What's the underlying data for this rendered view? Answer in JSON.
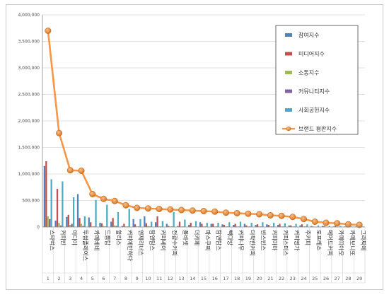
{
  "chart_data": {
    "type": "bar",
    "categories": [
      "스타벅스",
      "커피빈",
      "이디야",
      "투썸플레이스",
      "카페베네",
      "드롭탑",
      "할리스",
      "커피에반하다",
      "엔제리너스",
      "탐앤탐스",
      "커피베이",
      "전광수커피",
      "폴바셋",
      "더카페",
      "파스쿠찌",
      "탐앤탐스",
      "빽다방",
      "커피나무",
      "더착한커피",
      "빈스빈스",
      "커피마마",
      "커피스미스",
      "커피명가",
      "주커피",
      "토프레소",
      "메머드커피",
      "카페띠아모",
      "카페보니또",
      "그라찌에"
    ],
    "ranks": [
      "1",
      "2",
      "3",
      "4",
      "5",
      "6",
      "7",
      "8",
      "9",
      "10",
      "11",
      "12",
      "13",
      "14",
      "15",
      "16",
      "17",
      "18",
      "19",
      "20",
      "21",
      "22",
      "23",
      "24",
      "25",
      "26",
      "27",
      "28",
      "29"
    ],
    "ylim": [
      0,
      4000000
    ],
    "yticks": [
      0,
      500000,
      1000000,
      1500000,
      2000000,
      2500000,
      3000000,
      3500000,
      4000000
    ],
    "ytick_labels": [
      "0",
      "500,000",
      "1,000,000",
      "1,500,000",
      "2,000,000",
      "2,500,000",
      "3,000,000",
      "3,500,000",
      "4,000,000"
    ],
    "grid": true,
    "legend_position": "top-right",
    "series": [
      {
        "name": "참여지수",
        "color": "#4f81bd",
        "kind": "bar",
        "values": [
          1150000,
          120000,
          190000,
          620000,
          180000,
          80000,
          100000,
          20000,
          150000,
          200000,
          90000,
          60000,
          20000,
          40000,
          90000,
          60000,
          50000,
          40000,
          60000,
          40000,
          50000,
          40000,
          30000,
          30000,
          20000,
          20000,
          10000,
          10000,
          10000
        ]
      },
      {
        "name": "미디어지수",
        "color": "#c0504d",
        "kind": "bar",
        "values": [
          1240000,
          720000,
          230000,
          170000,
          90000,
          70000,
          170000,
          60000,
          50000,
          70000,
          200000,
          20000,
          100000,
          80000,
          60000,
          60000,
          40000,
          60000,
          30000,
          50000,
          40000,
          60000,
          30000,
          50000,
          10000,
          20000,
          20000,
          10000,
          10000
        ]
      },
      {
        "name": "소통지수",
        "color": "#9bbb59",
        "kind": "bar",
        "values": [
          200000,
          80000,
          40000,
          60000,
          10000,
          20000,
          30000,
          10000,
          10000,
          20000,
          10000,
          10000,
          10000,
          10000,
          10000,
          10000,
          10000,
          10000,
          10000,
          10000,
          10000,
          10000,
          10000,
          10000,
          5000,
          5000,
          5000,
          5000,
          5000
        ]
      },
      {
        "name": "커뮤니티지수",
        "color": "#8064a2",
        "kind": "bar",
        "values": [
          150000,
          30000,
          60000,
          20000,
          10000,
          10000,
          20000,
          10000,
          10000,
          10000,
          10000,
          10000,
          10000,
          10000,
          10000,
          10000,
          10000,
          10000,
          10000,
          10000,
          10000,
          10000,
          10000,
          10000,
          5000,
          5000,
          5000,
          5000,
          5000
        ]
      },
      {
        "name": "사회공헌지수",
        "color": "#4bacc6",
        "kind": "bar",
        "values": [
          900000,
          860000,
          560000,
          200000,
          510000,
          420000,
          280000,
          340000,
          150000,
          100000,
          110000,
          280000,
          140000,
          110000,
          80000,
          80000,
          90000,
          100000,
          80000,
          90000,
          80000,
          70000,
          60000,
          50000,
          30000,
          20000,
          20000,
          10000,
          10000
        ]
      },
      {
        "name": "브랜드 평판지수",
        "color": "#f79646",
        "kind": "line",
        "values": [
          3700000,
          1770000,
          1070000,
          1060000,
          620000,
          530000,
          490000,
          410000,
          360000,
          350000,
          340000,
          330000,
          320000,
          310000,
          300000,
          290000,
          270000,
          260000,
          250000,
          240000,
          220000,
          210000,
          190000,
          150000,
          100000,
          80000,
          70000,
          50000,
          40000
        ]
      }
    ]
  }
}
